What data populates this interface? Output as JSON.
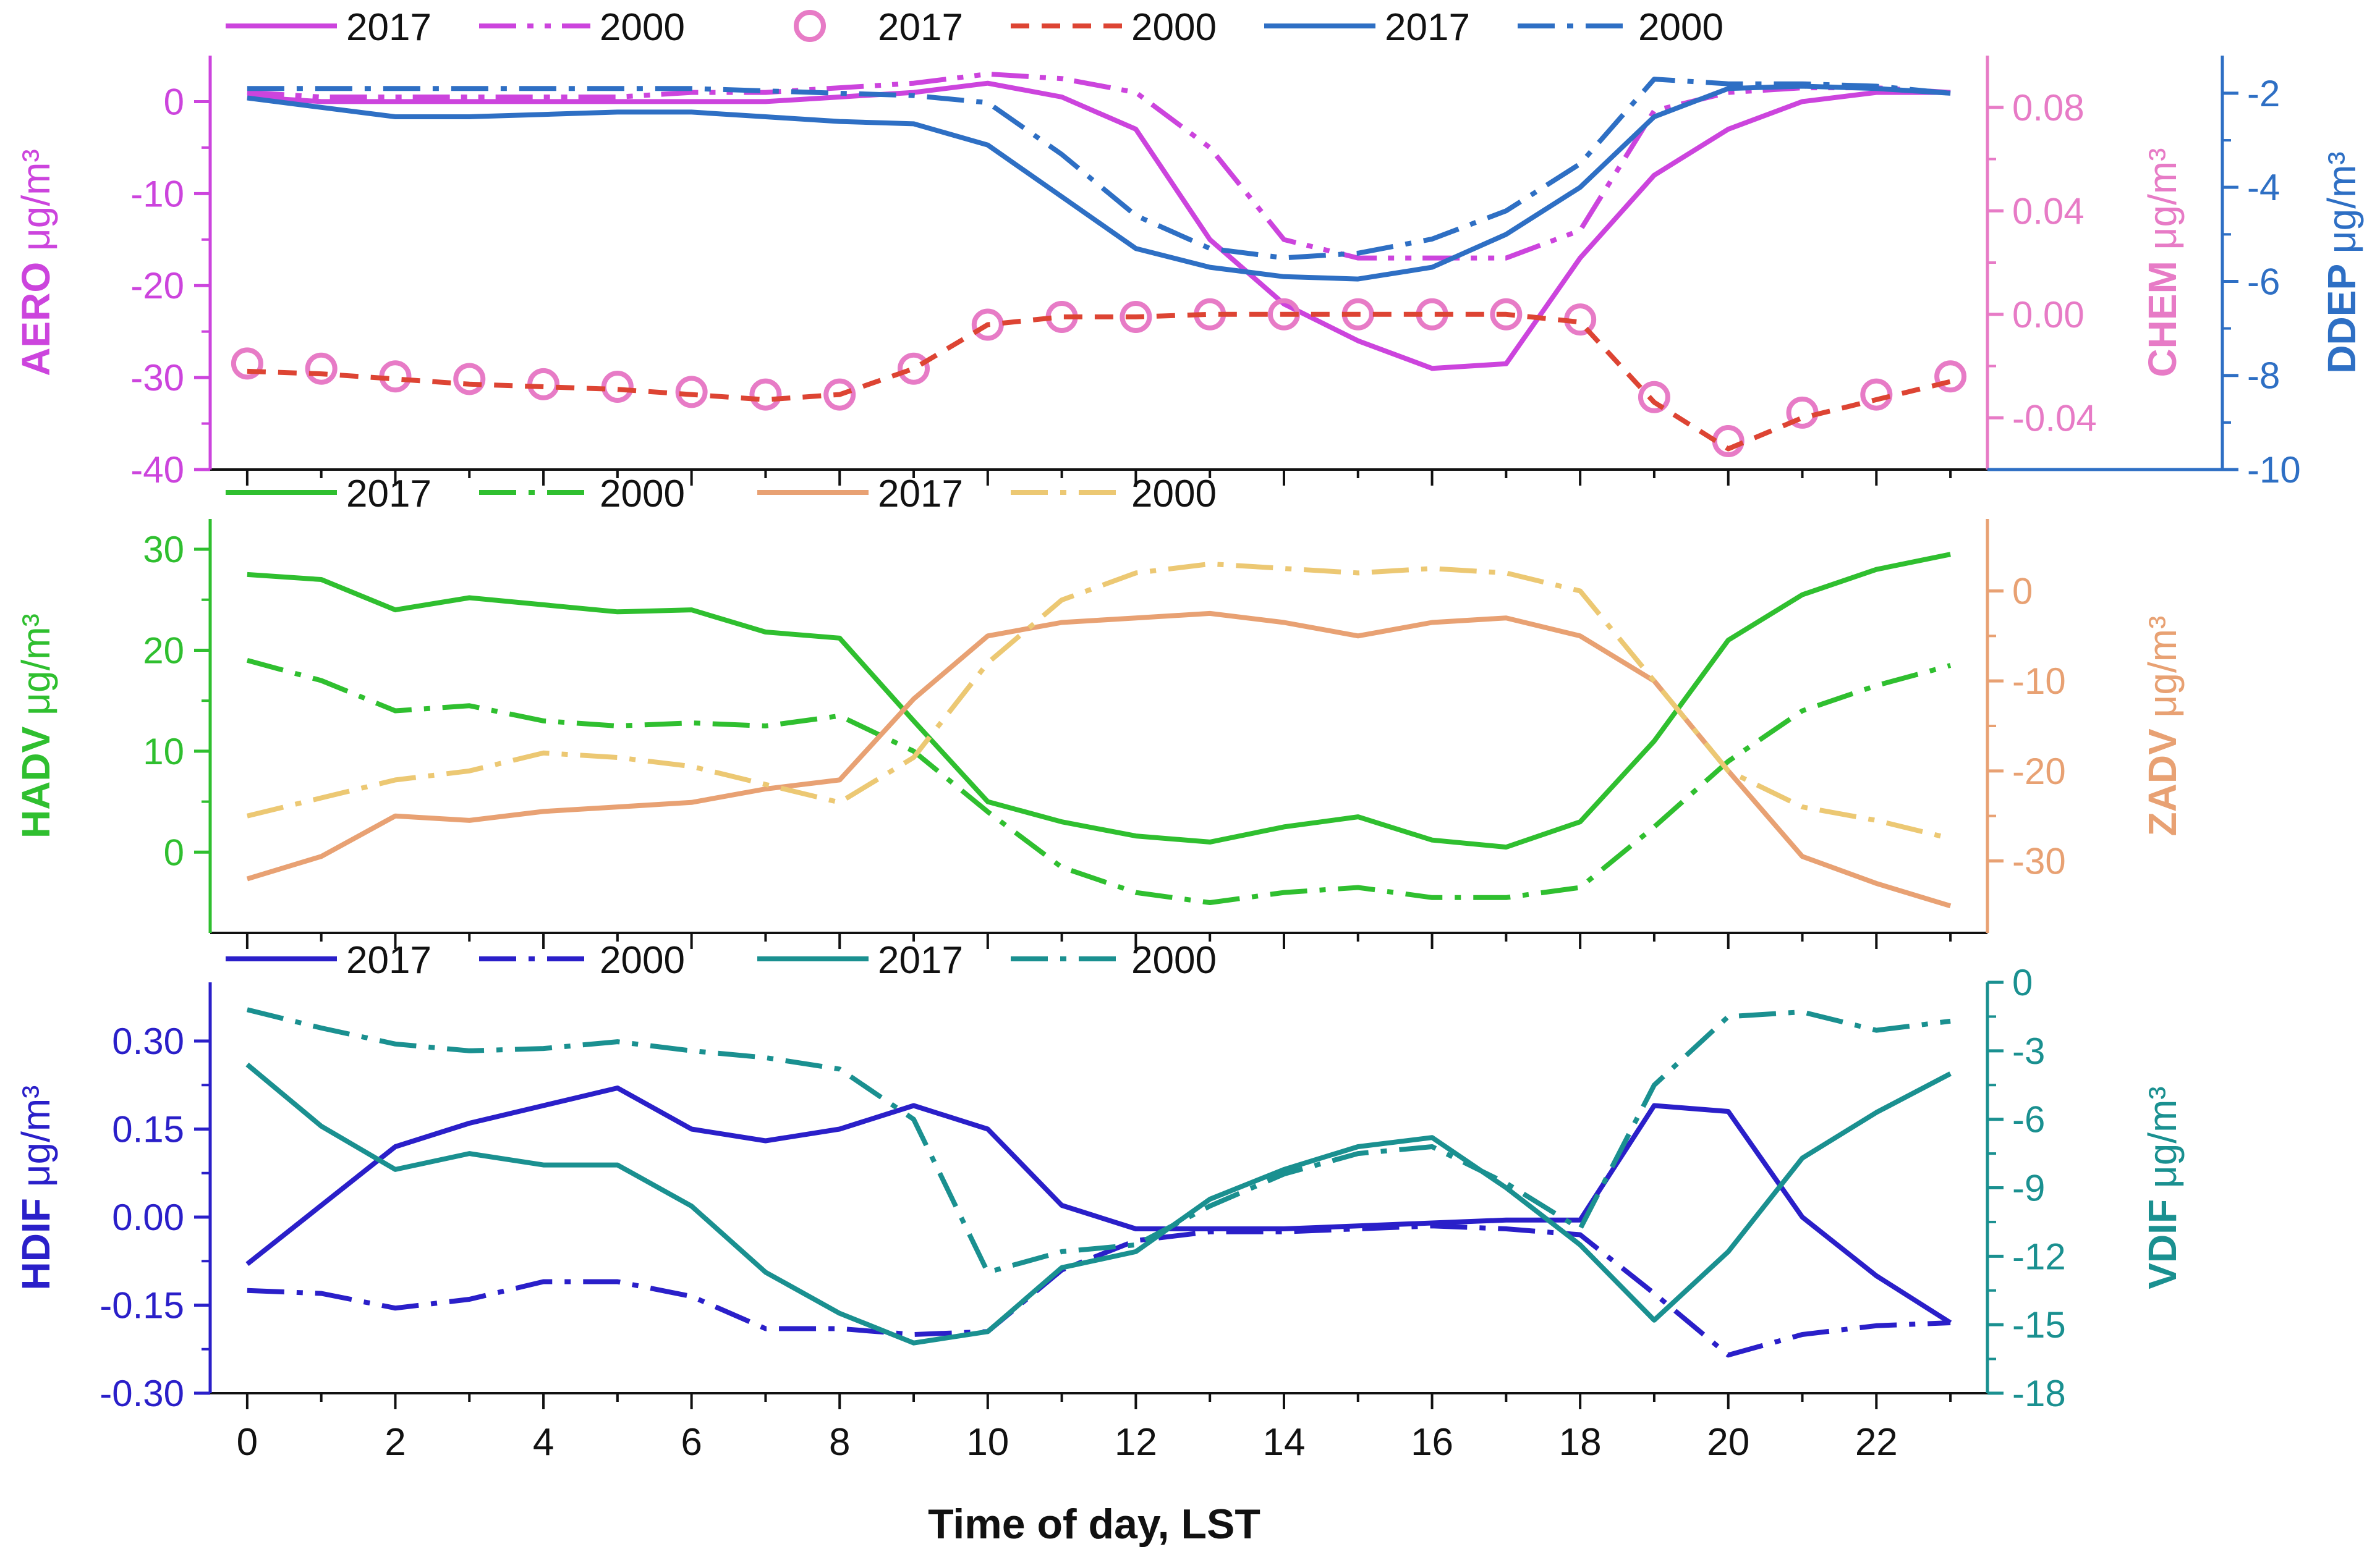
{
  "figure": {
    "xlabel": "Time of day, LST"
  },
  "chart_data": [
    {
      "type": "line",
      "panel": "top",
      "x": [
        0,
        1,
        2,
        3,
        4,
        5,
        6,
        7,
        8,
        9,
        10,
        11,
        12,
        13,
        14,
        15,
        16,
        17,
        18,
        19,
        20,
        21,
        22,
        23
      ],
      "xlim": [
        -0.5,
        23.5
      ],
      "xticks": [
        0,
        2,
        4,
        6,
        8,
        10,
        12,
        14,
        16,
        18,
        20,
        22
      ],
      "xlabel": "Time of day, LST",
      "left_axis": {
        "label": "AERO",
        "unit": "μg/m³",
        "color": "#cc44dd",
        "ylim": [
          -40,
          5
        ],
        "ticks": [
          -40,
          -30,
          -20,
          -10,
          0
        ]
      },
      "right_axes": [
        {
          "label": "CHEM",
          "unit": "μg/m³",
          "color": "#e77bc6",
          "ylim": [
            -0.06,
            0.1
          ],
          "ticks": [
            -0.04,
            0.0,
            0.04,
            0.08
          ],
          "tick_labels": [
            "-0.04",
            "0.00",
            "0.04",
            "0.08"
          ]
        },
        {
          "label": "DDEP",
          "unit": "μg/m³",
          "color": "#2e6fc4",
          "ylim": [
            -10,
            -1.2
          ],
          "ticks": [
            -10,
            -8,
            -6,
            -4,
            -2
          ]
        }
      ],
      "legend": [
        {
          "label": "2017",
          "series": "AERO 2017"
        },
        {
          "label": "2000",
          "series": "AERO 2000"
        },
        {
          "label": "2017",
          "series": "CHEM 2017"
        },
        {
          "label": "2000",
          "series": "CHEM 2000"
        },
        {
          "label": "2017",
          "series": "DDEP 2017"
        },
        {
          "label": "2000",
          "series": "DDEP 2000"
        }
      ],
      "series": [
        {
          "name": "AERO 2017",
          "axis": "left",
          "color": "#cc44dd",
          "style": "solid",
          "values": [
            0.5,
            0,
            0,
            0,
            0,
            0,
            0,
            0,
            0.5,
            1,
            2,
            0.5,
            -3,
            -15,
            -22,
            -26,
            -29,
            -28.5,
            -17,
            -8,
            -3,
            0,
            1,
            1
          ]
        },
        {
          "name": "AERO 2000",
          "axis": "left",
          "color": "#cc44dd",
          "style": "dashdotdot",
          "values": [
            1,
            0.5,
            0.5,
            0.5,
            0.5,
            0.5,
            1,
            1,
            1.5,
            2,
            3,
            2.5,
            1,
            -5,
            -15,
            -17,
            -17,
            -17,
            -14,
            -1,
            1,
            1.5,
            1.5,
            1
          ]
        },
        {
          "name": "CHEM 2017",
          "axis": "right0",
          "color": "#e77bc6",
          "style": "circle",
          "values": [
            -0.019,
            -0.021,
            -0.024,
            -0.025,
            -0.027,
            -0.028,
            -0.03,
            -0.031,
            -0.031,
            -0.021,
            -0.004,
            -0.001,
            -0.001,
            0.0,
            0.0,
            0.0,
            0.0,
            0.0,
            -0.002,
            -0.032,
            -0.049,
            -0.038,
            -0.031,
            -0.024
          ]
        },
        {
          "name": "CHEM 2000",
          "axis": "right0",
          "color": "#dd4433",
          "style": "dashed",
          "values": [
            -0.022,
            -0.023,
            -0.025,
            -0.027,
            -0.028,
            -0.029,
            -0.031,
            -0.033,
            -0.031,
            -0.021,
            -0.004,
            -0.001,
            -0.001,
            0.0,
            0.0,
            0.0,
            0.0,
            0.0,
            -0.003,
            -0.034,
            -0.052,
            -0.04,
            -0.033,
            -0.026
          ]
        },
        {
          "name": "DDEP 2017",
          "axis": "right1",
          "color": "#2e6fc4",
          "style": "solid",
          "values": [
            -2.1,
            -2.3,
            -2.5,
            -2.5,
            -2.45,
            -2.4,
            -2.4,
            -2.5,
            -2.6,
            -2.65,
            -3.1,
            -4.2,
            -5.3,
            -5.7,
            -5.9,
            -5.95,
            -5.7,
            -5.0,
            -4.0,
            -2.5,
            -1.9,
            -1.85,
            -1.9,
            -2.0
          ]
        },
        {
          "name": "DDEP 2000",
          "axis": "right1",
          "color": "#2e6fc4",
          "style": "dashdot",
          "values": [
            -1.9,
            -1.9,
            -1.9,
            -1.9,
            -1.9,
            -1.9,
            -1.9,
            -1.95,
            -2.0,
            -2.05,
            -2.2,
            -3.3,
            -4.6,
            -5.3,
            -5.5,
            -5.4,
            -5.1,
            -4.5,
            -3.5,
            -1.7,
            -1.8,
            -1.8,
            -1.85,
            -2.0
          ]
        }
      ]
    },
    {
      "type": "line",
      "panel": "middle",
      "x": [
        0,
        1,
        2,
        3,
        4,
        5,
        6,
        7,
        8,
        9,
        10,
        11,
        12,
        13,
        14,
        15,
        16,
        17,
        18,
        19,
        20,
        21,
        22,
        23
      ],
      "xlim": [
        -0.5,
        23.5
      ],
      "left_axis": {
        "label": "HADV",
        "unit": "μg/m³",
        "color": "#2fbf2f",
        "ylim": [
          -8,
          33
        ],
        "ticks": [
          0,
          10,
          20,
          30
        ]
      },
      "right_axes": [
        {
          "label": "ZADV",
          "unit": "μg/m³",
          "color": "#e8a173",
          "ylim": [
            -38,
            8
          ],
          "ticks": [
            -30,
            -20,
            -10,
            0
          ]
        }
      ],
      "legend": [
        {
          "label": "2017",
          "series": "HADV 2017"
        },
        {
          "label": "2000",
          "series": "HADV 2000"
        },
        {
          "label": "2017",
          "series": "ZADV 2017"
        },
        {
          "label": "2000",
          "series": "ZADV 2000"
        }
      ],
      "series": [
        {
          "name": "HADV 2017",
          "axis": "left",
          "color": "#2fbf2f",
          "style": "solid",
          "values": [
            27.5,
            27,
            24,
            25.2,
            24.5,
            23.8,
            24,
            21.8,
            21.2,
            13,
            5,
            3,
            1.6,
            1,
            2.5,
            3.5,
            1.2,
            0.5,
            3,
            11,
            21,
            25.5,
            28,
            29.5
          ]
        },
        {
          "name": "HADV 2000",
          "axis": "left",
          "color": "#2fbf2f",
          "style": "dashdot",
          "values": [
            19,
            17,
            14,
            14.5,
            13,
            12.5,
            12.8,
            12.5,
            13.5,
            10,
            4,
            -1.5,
            -4,
            -5,
            -4,
            -3.5,
            -4.5,
            -4.5,
            -3.5,
            2.5,
            9,
            14,
            16.5,
            18.5
          ]
        },
        {
          "name": "ZADV 2017",
          "axis": "right0",
          "color": "#e8a173",
          "style": "solid",
          "values": [
            -32,
            -29.5,
            -25,
            -25.5,
            -24.5,
            -24,
            -23.5,
            -22,
            -21,
            -12,
            -5,
            -3.5,
            -3,
            -2.5,
            -3.5,
            -5,
            -3.5,
            -3,
            -5,
            -10,
            -20,
            -29.5,
            -32.5,
            -35
          ]
        },
        {
          "name": "ZADV 2000",
          "axis": "right0",
          "color": "#ecc873",
          "style": "dashdot",
          "values": [
            -25,
            -23,
            -21,
            -20,
            -18,
            -18.5,
            -19.5,
            -21.5,
            -23.5,
            -18.5,
            -8,
            -1,
            2,
            3,
            2.5,
            2,
            2.5,
            2,
            0,
            -10,
            -20,
            -24,
            -25.5,
            -27.5
          ]
        }
      ]
    },
    {
      "type": "line",
      "panel": "bottom",
      "x": [
        0,
        1,
        2,
        3,
        4,
        5,
        6,
        7,
        8,
        9,
        10,
        11,
        12,
        13,
        14,
        15,
        16,
        17,
        18,
        19,
        20,
        21,
        22,
        23
      ],
      "xlim": [
        -0.5,
        23.5
      ],
      "left_axis": {
        "label": "HDIF",
        "unit": "μg/m³",
        "color": "#2a1fc9",
        "ylim": [
          -0.3,
          0.4
        ],
        "ticks": [
          -0.3,
          -0.15,
          0.0,
          0.15,
          0.3
        ],
        "tick_labels": [
          "-0.30",
          "-0.15",
          "0.00",
          "0.15",
          "0.30"
        ]
      },
      "right_axes": [
        {
          "label": "VDIF",
          "unit": "μg/m³",
          "color": "#1a9090",
          "ylim": [
            -18,
            0
          ],
          "ticks": [
            -18,
            -15,
            -12,
            -9,
            -6,
            -3,
            0
          ]
        }
      ],
      "legend": [
        {
          "label": "2017",
          "series": "HDIF 2017"
        },
        {
          "label": "2000",
          "series": "HDIF 2000"
        },
        {
          "label": "2017",
          "series": "VDIF 2017"
        },
        {
          "label": "2000",
          "series": "VDIF 2000"
        }
      ],
      "series": [
        {
          "name": "HDIF 2017",
          "axis": "left",
          "color": "#2a1fc9",
          "style": "solid",
          "values": [
            -0.08,
            0.02,
            0.12,
            0.16,
            0.19,
            0.22,
            0.15,
            0.13,
            0.15,
            0.19,
            0.15,
            0.02,
            -0.02,
            -0.02,
            -0.02,
            -0.015,
            -0.01,
            -0.005,
            -0.005,
            0.19,
            0.18,
            0,
            -0.1,
            -0.18
          ]
        },
        {
          "name": "HDIF 2000",
          "axis": "left",
          "color": "#2a1fc9",
          "style": "dashdot",
          "values": [
            -0.125,
            -0.13,
            -0.155,
            -0.14,
            -0.11,
            -0.11,
            -0.135,
            -0.19,
            -0.19,
            -0.2,
            -0.195,
            -0.09,
            -0.04,
            -0.025,
            -0.025,
            -0.02,
            -0.015,
            -0.02,
            -0.03,
            -0.13,
            -0.235,
            -0.2,
            -0.185,
            -0.18
          ]
        },
        {
          "name": "VDIF 2017",
          "axis": "right0",
          "color": "#1a9090",
          "style": "solid",
          "values": [
            -3.6,
            -6.3,
            -8.2,
            -7.5,
            -8.0,
            -8.0,
            -9.8,
            -12.7,
            -14.5,
            -15.8,
            -15.3,
            -12.5,
            -11.8,
            -9.5,
            -8.2,
            -7.2,
            -6.8,
            -9.0,
            -11.5,
            -14.8,
            -11.8,
            -7.7,
            -5.7,
            -4.0
          ]
        },
        {
          "name": "VDIF 2000",
          "axis": "right0",
          "color": "#1a9090",
          "style": "dashdot",
          "values": [
            -1.2,
            -2.0,
            -2.7,
            -3.0,
            -2.9,
            -2.6,
            -3.0,
            -3.3,
            -3.8,
            -6.0,
            -12.7,
            -11.8,
            -11.5,
            -9.8,
            -8.4,
            -7.5,
            -7.2,
            -8.8,
            -10.8,
            -4.5,
            -1.5,
            -1.3,
            -2.1,
            -1.7
          ]
        }
      ]
    }
  ]
}
